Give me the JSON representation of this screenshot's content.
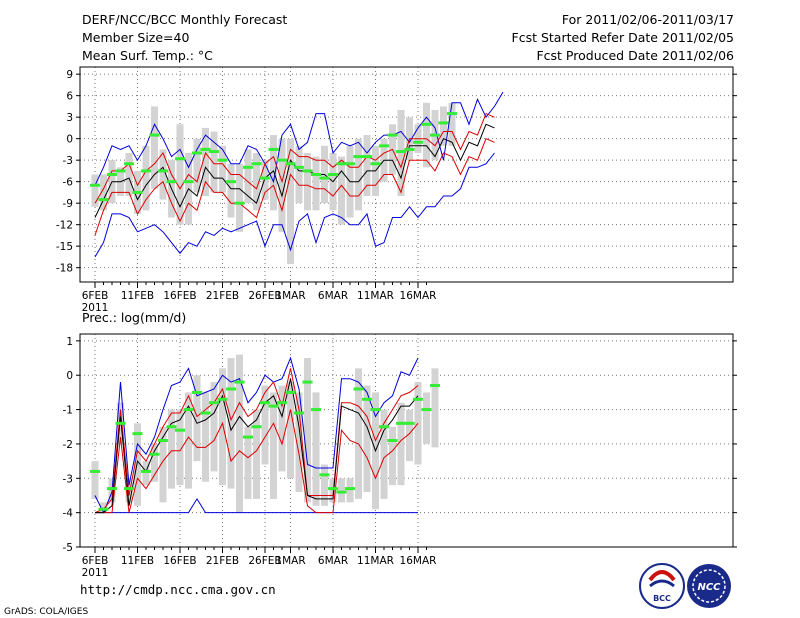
{
  "header": {
    "title": "DERF/NCC/BCC Monthly Forecast",
    "member_size": "Member Size=40",
    "variable": "Mean Surf. Temp.: °C",
    "period": "For 2011/02/06-2011/03/17",
    "started": "Fcst Started Refer Date 2011/02/05",
    "produced": "Fcst Produced Date 2011/02/06"
  },
  "footer": {
    "url": "http://cmdp.ncc.cma.gov.cn",
    "grads": "GrADS: COLA/IGES",
    "logo_bcc": "BCC",
    "logo_ncc": "NCC"
  },
  "colors": {
    "mean": "#000000",
    "spread": "#dd0000",
    "envelope": "#0000dd",
    "box": "#d3d3d3",
    "median": "#33ee33",
    "grid": "#777777"
  },
  "chart_data": [
    {
      "type": "line",
      "title": "Mean Surf. Temp.: °C",
      "ylim": [
        -20,
        10
      ],
      "yticks": [
        9,
        6,
        3,
        0,
        -3,
        -6,
        -9,
        -12,
        -15,
        -18
      ],
      "ytick_labels": [
        "9",
        "6",
        "3",
        "0",
        "-3",
        "-6",
        "-9",
        "-12",
        "-15",
        "-18"
      ],
      "xtick_days": [
        0,
        5,
        10,
        15,
        20,
        23,
        28,
        33,
        38
      ],
      "xtick_labels": [
        "6FEB",
        "11FEB",
        "16FEB",
        "21FEB",
        "26FEB",
        "1MAR",
        "6MAR",
        "11MAR",
        "16MAR"
      ],
      "year_label": "2011",
      "days": 40,
      "series": [
        {
          "name": "envelope_max",
          "values": [
            -6.5,
            -4,
            -1,
            -1.5,
            -1,
            -3,
            -1,
            2,
            0,
            -2.5,
            -1.5,
            -4,
            -1.5,
            0.5,
            -0.5,
            -1.5,
            -3.5,
            -3.5,
            -1,
            -1.5,
            -3.5,
            -6,
            0.5,
            2,
            -1.5,
            -0.5,
            3.5,
            3.5,
            -2,
            -0.5,
            -1,
            -0.5,
            -2,
            -0.5,
            0.5,
            0.5,
            1,
            -0.5,
            1.5,
            3,
            1.5,
            -3,
            5,
            5,
            2,
            5.5,
            3,
            4.5,
            6.5
          ]
        },
        {
          "name": "envelope_min",
          "values": [
            -16.5,
            -14.5,
            -10.5,
            -10.5,
            -11,
            -13,
            -12.5,
            -12,
            -13,
            -14.5,
            -16,
            -14.5,
            -15,
            -13,
            -13.5,
            -12.5,
            -13,
            -12.5,
            -12,
            -11.5,
            -15,
            -12,
            -12,
            -15.5,
            -11.5,
            -10.5,
            -14.5,
            -11,
            -10.5,
            -11,
            -12,
            -12,
            -10.5,
            -15,
            -14.5,
            -11,
            -11,
            -9.5,
            -11,
            -9.5,
            -9.5,
            -8,
            -8,
            -7,
            -4,
            -4,
            -3.5,
            -2
          ]
        },
        {
          "name": "spread_upper",
          "values": [
            -9,
            -7,
            -4.5,
            -4.5,
            -3.5,
            -6.5,
            -4.5,
            -3.5,
            -2,
            -5,
            -7,
            -5,
            -6,
            -2,
            -3.5,
            -3.5,
            -5,
            -5,
            -6,
            -7,
            -3.5,
            -2.5,
            -6,
            -1.5,
            -2.5,
            -2.5,
            -3,
            -3,
            -4,
            -3,
            -4,
            -4,
            -2.5,
            -3,
            -2,
            -1.5,
            -4,
            0,
            0,
            0,
            -1,
            1,
            1,
            -1.5,
            1,
            0.5,
            3.5,
            3
          ]
        },
        {
          "name": "mean",
          "values": [
            -11,
            -8.5,
            -6,
            -6,
            -5.5,
            -8.5,
            -6.5,
            -5,
            -4,
            -7,
            -9.5,
            -7,
            -8,
            -4,
            -5.5,
            -5.5,
            -7,
            -7,
            -8,
            -9,
            -5.5,
            -4.5,
            -8,
            -3,
            -4.5,
            -4.5,
            -5,
            -5,
            -6,
            -4.5,
            -6,
            -6,
            -4.5,
            -4.5,
            -3,
            -3,
            -5.5,
            -1,
            -1,
            -1,
            -2.5,
            0,
            -0.5,
            -3,
            -0.5,
            -1,
            2,
            1.5
          ]
        },
        {
          "name": "spread_lower",
          "values": [
            -13.5,
            -10,
            -7.5,
            -7.5,
            -7.5,
            -10.5,
            -8.5,
            -7,
            -6,
            -9,
            -11.5,
            -9,
            -10,
            -6,
            -7.5,
            -7.5,
            -9,
            -9,
            -10,
            -11,
            -7.5,
            -6.5,
            -10,
            -5,
            -6.5,
            -6.5,
            -7,
            -7,
            -8,
            -6.5,
            -8,
            -8,
            -6.5,
            -6.5,
            -5,
            -5,
            -7.5,
            -3,
            -3,
            -3,
            -4.5,
            -2,
            -2.5,
            -5,
            -2.5,
            -3,
            0,
            -0.5
          ]
        },
        {
          "name": "median",
          "values": [
            -6.5,
            -8.5,
            -5,
            -4.5,
            -3.5,
            -7.5,
            -4.5,
            0.5,
            -4.5,
            -6,
            -2.8,
            -6,
            -2,
            -1.5,
            -1.8,
            -3,
            -6,
            -9,
            -4,
            -3.5,
            -5.5,
            -1.5,
            -3,
            -3.5,
            -4,
            -4.5,
            -5,
            -5.5,
            -5,
            -3.5,
            -3.5,
            -2.5,
            -2.5,
            -3.5,
            -1,
            0.5,
            -1.8,
            -1.5,
            -0.5,
            2,
            0.5,
            2.2,
            3.5
          ]
        },
        {
          "name": "box_top",
          "values": [
            -5,
            -5,
            -3,
            -4,
            -2,
            -4.5,
            -1,
            4.5,
            -1.5,
            -3,
            2,
            -2,
            0,
            1.5,
            1,
            -1,
            -3.5,
            -3.5,
            -1.5,
            -2,
            -3,
            0.5,
            0,
            0,
            -1,
            -2,
            -2.5,
            -1,
            -2,
            -2.5,
            -1,
            0,
            0.5,
            -1,
            0,
            2,
            4,
            3,
            2,
            5,
            4,
            4.5,
            5
          ]
        },
        {
          "name": "box_bottom",
          "values": [
            -9.5,
            -10,
            -9,
            -8,
            -8,
            -10.5,
            -10,
            -7,
            -8.5,
            -11,
            -12,
            -12,
            -7.5,
            -8,
            -7.5,
            -7.5,
            -11,
            -13,
            -9,
            -10,
            -8.5,
            -10,
            -13,
            -17.5,
            -9,
            -10,
            -10,
            -9,
            -10,
            -12,
            -11,
            -10,
            -8,
            -8,
            -6,
            -5,
            -8,
            -3,
            -2,
            -4,
            -3,
            -1,
            -1
          ]
        }
      ]
    },
    {
      "type": "line",
      "title": "Prec.: log(mm/d)",
      "ylim": [
        -5,
        1.2
      ],
      "yticks": [
        1,
        0,
        -1,
        -2,
        -3,
        -4,
        -5
      ],
      "ytick_labels": [
        "1",
        "0",
        "-1",
        "-2",
        "-3",
        "-4",
        "-5"
      ],
      "xtick_days": [
        0,
        5,
        10,
        15,
        20,
        23,
        28,
        33,
        38
      ],
      "xtick_labels": [
        "6FEB",
        "11FEB",
        "16FEB",
        "21FEB",
        "26FEB",
        "1MAR",
        "6MAR",
        "11MAR",
        "16MAR"
      ],
      "year_label": "2011",
      "days": 40,
      "series": [
        {
          "name": "envelope_max",
          "values": [
            -3.5,
            -4,
            -3.4,
            -0.2,
            -3.2,
            -2,
            -2.3,
            -1.8,
            -1,
            -0.3,
            -0.2,
            0.2,
            -0.6,
            -0.5,
            -0.4,
            0,
            -0.2,
            -0.1,
            -0.8,
            -0.5,
            0,
            -0.2,
            -0.1,
            0.5,
            -0.4,
            -2.6,
            -2.7,
            -2.7,
            -2.7,
            -0.1,
            -0.1,
            -0.2,
            -0.5,
            -1.2,
            -0.8,
            -0.6,
            0.1,
            0,
            0.5
          ]
        },
        {
          "name": "envelope_min",
          "values": [
            -4,
            -4,
            -4,
            -4,
            -4,
            -4,
            -4,
            -4,
            -4,
            -4,
            -4,
            -4,
            -3.6,
            -4,
            -4,
            -4,
            -4,
            -4,
            -4,
            -4,
            -4,
            -4,
            -4,
            -4,
            -4,
            -4,
            -4,
            -4,
            -4,
            -4,
            -4,
            -4,
            -4,
            -4,
            -4,
            -4,
            -4,
            -4,
            -4
          ]
        },
        {
          "name": "spread_upper",
          "values": [
            -4,
            -3.9,
            -3.6,
            -1,
            -3.5,
            -2.2,
            -2.5,
            -2,
            -1.5,
            -1.1,
            -1.1,
            -0.6,
            -1.2,
            -1,
            -0.8,
            -0.4,
            -1.3,
            -0.8,
            -1.2,
            -1,
            -0.5,
            -0.2,
            -0.9,
            0.2,
            -1,
            -3.5,
            -3.5,
            -3.5,
            -3.5,
            -0.8,
            -0.8,
            -0.9,
            -1.2,
            -1.9,
            -1.4,
            -1,
            -0.6,
            -0.5,
            -0.3
          ]
        },
        {
          "name": "mean",
          "values": [
            -4,
            -4,
            -3.8,
            -1.2,
            -3.8,
            -2.5,
            -2.8,
            -2.2,
            -1.8,
            -1.4,
            -1.3,
            -0.9,
            -1.4,
            -1.3,
            -1.1,
            -0.6,
            -1.6,
            -1.2,
            -1.5,
            -1.3,
            -0.8,
            -0.6,
            -1.2,
            -0.1,
            -1.5,
            -3.5,
            -3.6,
            -3.6,
            -3.6,
            -0.9,
            -1,
            -1.1,
            -1.5,
            -2.2,
            -1.6,
            -1.3,
            -0.9,
            -0.9,
            -0.6
          ]
        },
        {
          "name": "spread_lower",
          "values": [
            -4,
            -4,
            -4,
            -1.8,
            -4,
            -3,
            -3.3,
            -2.9,
            -2.5,
            -2.2,
            -2.2,
            -1.8,
            -2.1,
            -2.1,
            -1.9,
            -1.4,
            -2.5,
            -2.2,
            -2.4,
            -2.2,
            -1.8,
            -1.4,
            -2,
            -1,
            -2.3,
            -3.8,
            -4,
            -4,
            -4,
            -1.6,
            -1.9,
            -2,
            -2.4,
            -3,
            -2.4,
            -2.2,
            -1.9,
            -1.7,
            -1.4
          ]
        },
        {
          "name": "median",
          "values": [
            -2.8,
            -3.9,
            -3.3,
            -1.4,
            -3.3,
            -1.7,
            -2.8,
            -2.3,
            -1.9,
            -1.5,
            -1.6,
            -1,
            -0.5,
            -1.1,
            -0.8,
            -0.7,
            -0.4,
            -0.2,
            -1.8,
            -1.5,
            -0.8,
            -0.9,
            -0.8,
            -0.5,
            -1.1,
            -0.2,
            -1,
            -2.9,
            -3.3,
            -3.4,
            -3.3,
            -0.4,
            -0.7,
            -1,
            -1.5,
            -1.9,
            -1.4,
            -1.4,
            -0.7,
            -1,
            -0.3
          ]
        },
        {
          "name": "box_top",
          "values": [
            -2.5,
            -3.7,
            -3,
            -0.8,
            -3,
            -1.4,
            -2.5,
            -2,
            -1.5,
            -1,
            -1,
            -0.5,
            0,
            -0.5,
            -0.2,
            0.2,
            0.5,
            0.6,
            -1.5,
            -1,
            -0.3,
            -0.5,
            -0.3,
            -0.2,
            -0.5,
            0.5,
            -0.5,
            -2.6,
            -3,
            -3,
            -3,
            0.2,
            -0.3,
            -0.5,
            -1,
            -1.5,
            -0.8,
            -1,
            -0.2,
            -0.5,
            0.2
          ]
        },
        {
          "name": "box_bottom",
          "values": [
            -3.6,
            -4,
            -3.7,
            -2,
            -3.7,
            -3.8,
            -3.2,
            -3.1,
            -3.7,
            -3.3,
            -3.2,
            -3.3,
            -2.5,
            -3.1,
            -2.8,
            -3.2,
            -3.3,
            -4,
            -3.6,
            -3.6,
            -2.6,
            -3.6,
            -2.8,
            -3,
            -3.4,
            -3.7,
            -3.8,
            -3.8,
            -3.7,
            -3.7,
            -3.7,
            -3.6,
            -3.4,
            -3.9,
            -3.6,
            -3.2,
            -3.2,
            -2.5,
            -2.6,
            -2,
            -2.1
          ]
        }
      ]
    }
  ]
}
